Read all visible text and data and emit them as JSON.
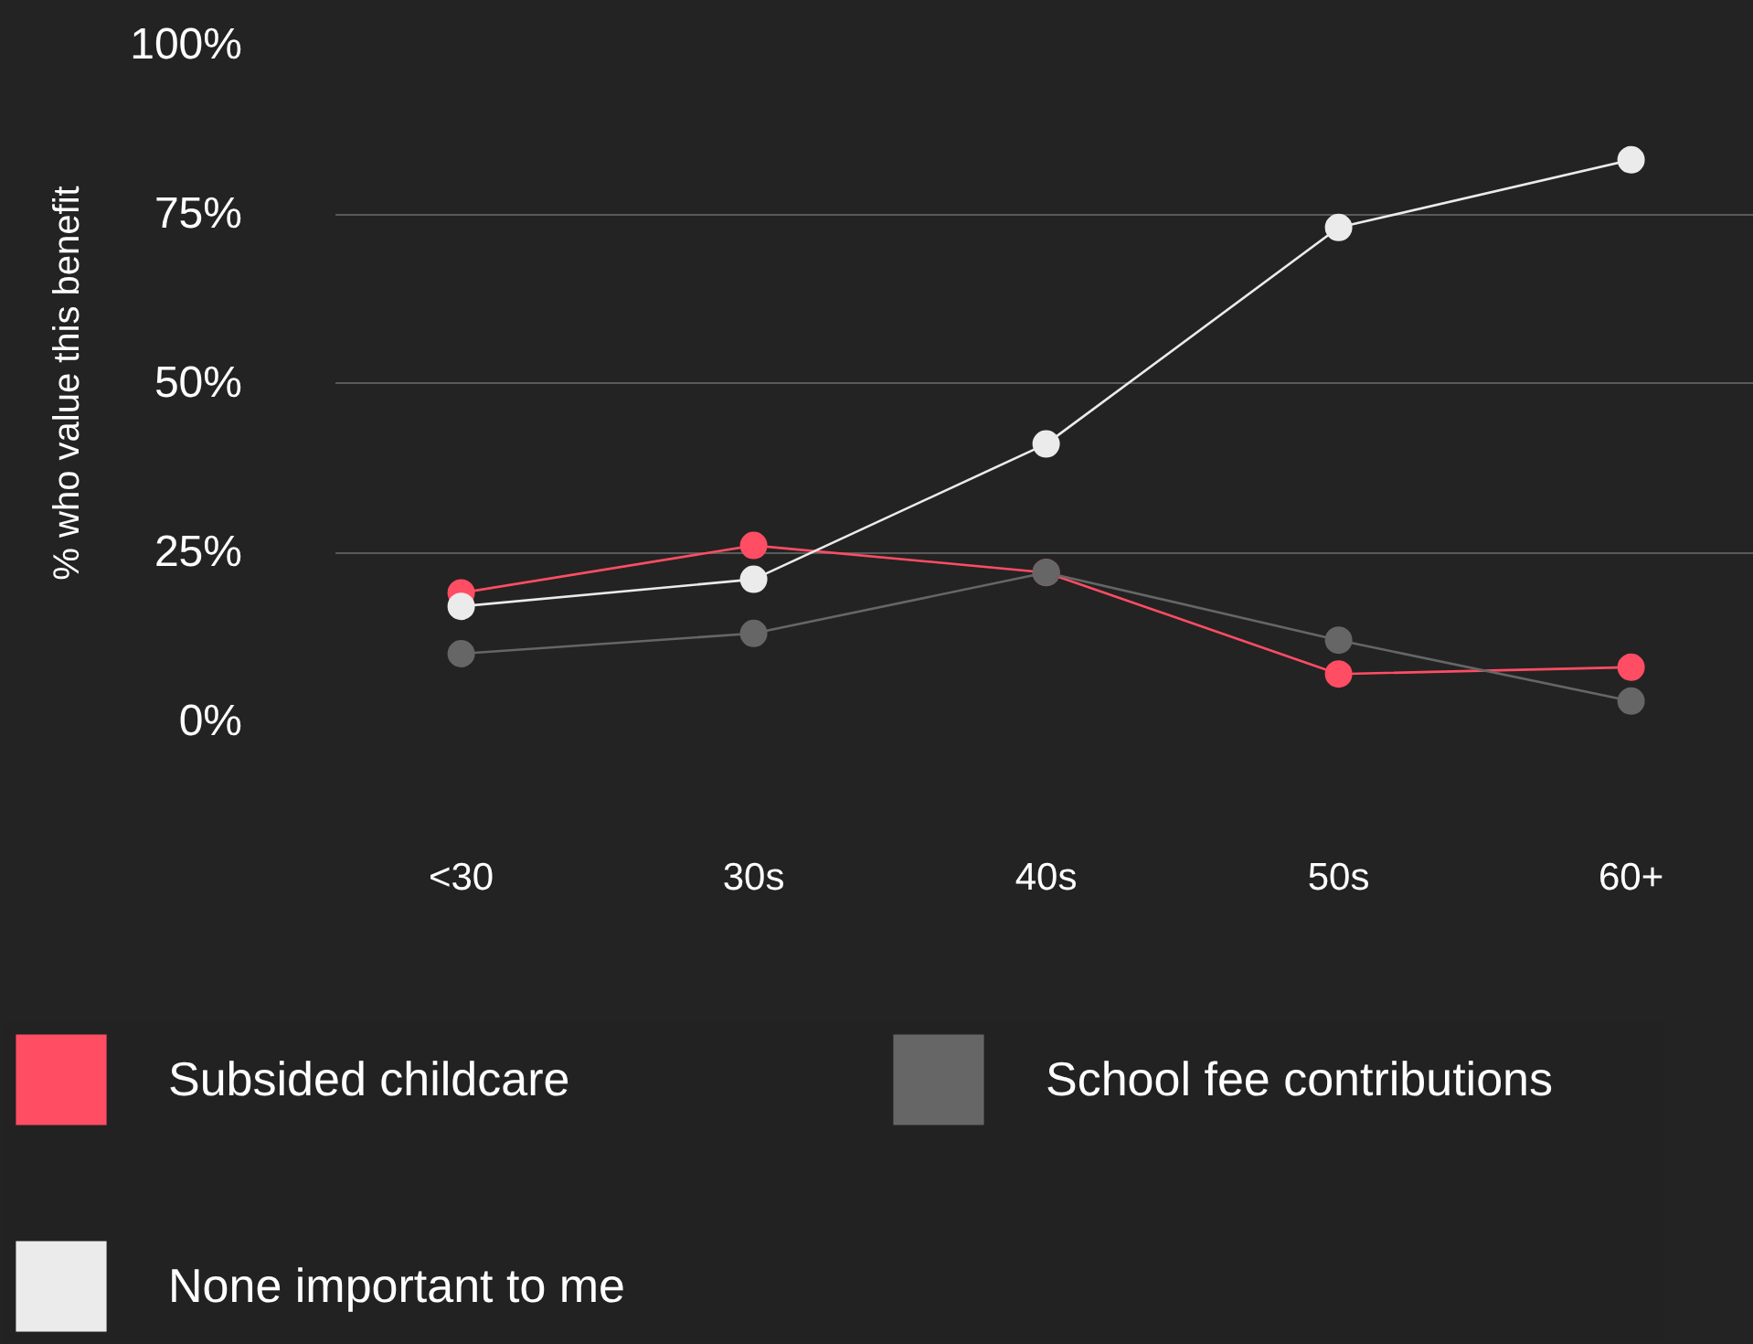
{
  "chart_data": {
    "type": "line",
    "ylabel": "% who value this benefit",
    "categories": [
      "<30",
      "30s",
      "40s",
      "50s",
      "60+"
    ],
    "series": [
      {
        "name": "Subsided childcare",
        "color": "#ff4d64",
        "values": [
          19,
          26,
          22,
          7,
          8
        ]
      },
      {
        "name": "School fee contributions",
        "color": "#666666",
        "values": [
          10,
          13,
          22,
          12,
          3
        ]
      },
      {
        "name": "None important to me",
        "color": "#ebebeb",
        "values": [
          17,
          21,
          41,
          73,
          83
        ]
      }
    ],
    "ylim": [
      0,
      100
    ],
    "yticks": [
      {
        "value": 0,
        "label": "0%"
      },
      {
        "value": 25,
        "label": "25%"
      },
      {
        "value": 50,
        "label": "50%"
      },
      {
        "value": 75,
        "label": "75%"
      },
      {
        "value": 100,
        "label": "100%"
      }
    ],
    "grid": "y",
    "legend": "bottom",
    "marker": "circle",
    "line_style": "solid"
  }
}
